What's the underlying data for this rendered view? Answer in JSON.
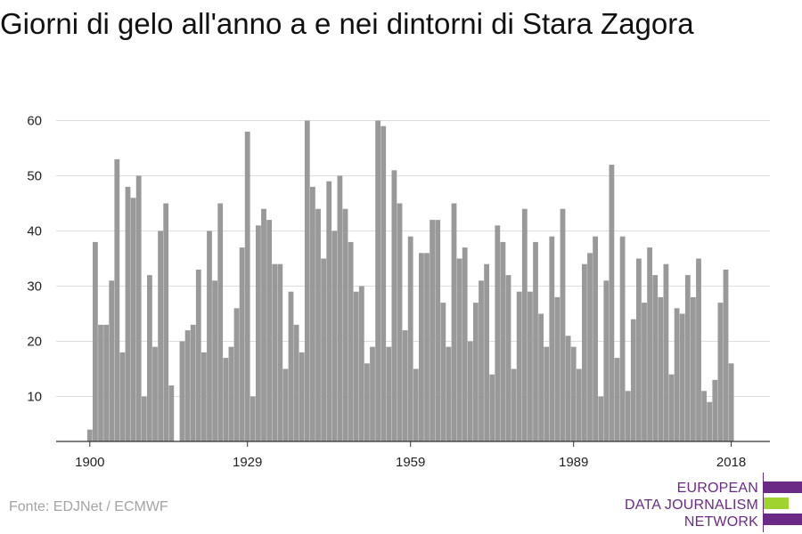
{
  "title": "Giorni di gelo all'anno a e nei dintorni di Stara Zagora",
  "source": "Fonte: EDJNet / ECMWF",
  "logo": {
    "lines": [
      "EUROPEAN",
      "DATA JOURNALISM",
      "NETWORK"
    ],
    "colors": {
      "purple": "#6b2a86",
      "green": "#9fd32e"
    }
  },
  "chart_data": {
    "type": "bar",
    "bar_color": "#999999",
    "x": [
      1900,
      1901,
      1902,
      1903,
      1904,
      1905,
      1906,
      1907,
      1908,
      1909,
      1910,
      1911,
      1912,
      1913,
      1914,
      1915,
      1916,
      1917,
      1918,
      1919,
      1920,
      1921,
      1922,
      1923,
      1924,
      1925,
      1926,
      1927,
      1928,
      1929,
      1930,
      1931,
      1932,
      1933,
      1934,
      1935,
      1936,
      1937,
      1938,
      1939,
      1940,
      1941,
      1942,
      1943,
      1944,
      1945,
      1946,
      1947,
      1948,
      1949,
      1950,
      1951,
      1952,
      1953,
      1954,
      1955,
      1956,
      1957,
      1958,
      1959,
      1960,
      1961,
      1962,
      1963,
      1964,
      1965,
      1966,
      1967,
      1968,
      1969,
      1970,
      1971,
      1972,
      1973,
      1974,
      1975,
      1976,
      1977,
      1978,
      1979,
      1980,
      1981,
      1982,
      1983,
      1984,
      1985,
      1986,
      1987,
      1988,
      1989,
      1990,
      1991,
      1992,
      1993,
      1994,
      1995,
      1996,
      1997,
      1998,
      1999,
      2000,
      2001,
      2002,
      2003,
      2004,
      2005,
      2006,
      2007,
      2008,
      2009,
      2010,
      2011,
      2012,
      2013,
      2014,
      2015,
      2016,
      2017,
      2018
    ],
    "values": [
      4,
      38,
      23,
      23,
      31,
      53,
      18,
      48,
      46,
      50,
      10,
      32,
      19,
      40,
      45,
      12,
      null,
      20,
      22,
      23,
      33,
      18,
      40,
      31,
      45,
      17,
      19,
      26,
      37,
      58,
      10,
      41,
      44,
      42,
      34,
      34,
      15,
      29,
      23,
      18,
      60,
      48,
      44,
      35,
      49,
      40,
      50,
      44,
      38,
      29,
      30,
      16,
      19,
      60,
      59,
      19,
      51,
      45,
      22,
      39,
      15,
      36,
      36,
      42,
      42,
      27,
      19,
      45,
      35,
      37,
      20,
      27,
      31,
      34,
      14,
      41,
      38,
      32,
      15,
      29,
      44,
      29,
      38,
      25,
      19,
      39,
      28,
      44,
      21,
      19,
      15,
      34,
      36,
      39,
      10,
      31,
      52,
      17,
      39,
      11,
      24,
      35,
      27,
      37,
      32,
      28,
      34,
      14,
      26,
      25,
      32,
      28,
      35,
      11,
      9,
      13,
      27,
      33,
      16
    ],
    "xticks": [
      1900,
      1929,
      1959,
      1989,
      2018
    ],
    "yticks": [
      10,
      20,
      30,
      40,
      50,
      60
    ],
    "ylim": [
      0,
      60
    ],
    "grid": true
  }
}
